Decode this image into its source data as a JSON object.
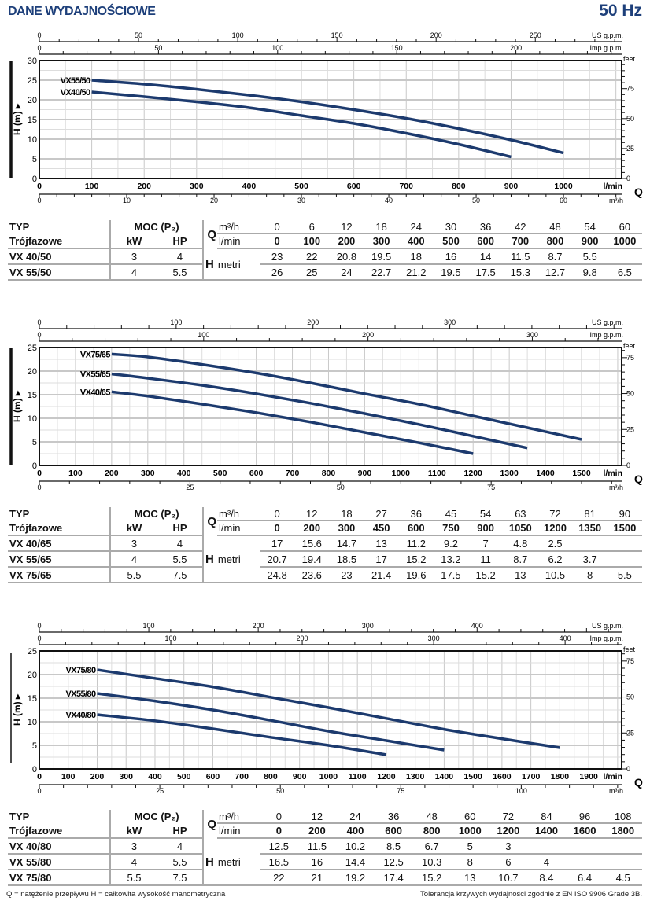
{
  "header": {
    "title": "DANE WYDAJNOŚCIOWE",
    "freq": "50 Hz"
  },
  "colors": {
    "curve": "#1c3a6e",
    "title": "#1d3f7a",
    "grid": "#c8c8c8"
  },
  "chart_data": [
    {
      "type": "line",
      "xlabel": "l/min",
      "ylabel": "H (m)",
      "q_label": "Q",
      "m3h_label": "m³/h",
      "us_label": "US g.p.m.",
      "imp_label": "Imp g.p.m.",
      "feet_label": "feet",
      "xlim": [
        0,
        1111
      ],
      "ylim": [
        0,
        30
      ],
      "x_ticks": [
        0,
        100,
        200,
        300,
        400,
        500,
        600,
        700,
        800,
        900,
        1000
      ],
      "y_ticks": [
        0,
        5,
        10,
        15,
        20,
        25,
        30
      ],
      "us_ticks": [
        0,
        50,
        100,
        150,
        200,
        250
      ],
      "imp_ticks": [
        0,
        50,
        100,
        150,
        200
      ],
      "m3h_ticks": [
        0,
        10,
        20,
        30,
        40,
        50,
        60
      ],
      "feet_ticks": [
        0,
        25,
        50,
        75
      ],
      "series": [
        {
          "name": "VX55/50",
          "x": [
            100,
            200,
            300,
            400,
            500,
            600,
            700,
            800,
            900,
            1000
          ],
          "y": [
            25,
            24,
            22.7,
            21.2,
            19.5,
            17.5,
            15.3,
            12.7,
            9.8,
            6.5
          ]
        },
        {
          "name": "VX40/50",
          "x": [
            100,
            200,
            300,
            400,
            500,
            600,
            700,
            800,
            900
          ],
          "y": [
            22,
            20.8,
            19.5,
            18,
            16,
            14,
            11.5,
            8.7,
            5.5
          ]
        }
      ]
    },
    {
      "type": "line",
      "xlabel": "l/min",
      "ylabel": "H (m)",
      "q_label": "Q",
      "m3h_label": "m³/h",
      "us_label": "US g.p.m.",
      "imp_label": "Imp g.p.m.",
      "feet_label": "feet",
      "xlim": [
        0,
        1611
      ],
      "ylim": [
        0,
        25
      ],
      "x_ticks": [
        0,
        100,
        200,
        300,
        400,
        500,
        600,
        700,
        800,
        900,
        1000,
        1100,
        1200,
        1300,
        1400,
        1500
      ],
      "y_ticks": [
        0,
        5,
        10,
        15,
        20,
        25
      ],
      "us_ticks": [
        0,
        100,
        200,
        300
      ],
      "imp_ticks": [
        0,
        100,
        200,
        300
      ],
      "m3h_ticks": [
        0,
        25,
        50,
        75
      ],
      "feet_ticks": [
        0,
        25,
        50,
        75
      ],
      "series": [
        {
          "name": "VX75/65",
          "x": [
            200,
            300,
            450,
            600,
            750,
            900,
            1050,
            1200,
            1350,
            1500
          ],
          "y": [
            23.6,
            23,
            21.4,
            19.6,
            17.5,
            15.2,
            13,
            10.5,
            8,
            5.5
          ]
        },
        {
          "name": "VX55/65",
          "x": [
            200,
            300,
            450,
            600,
            750,
            900,
            1050,
            1200,
            1350
          ],
          "y": [
            19.4,
            18.5,
            17,
            15.2,
            13.2,
            11,
            8.7,
            6.2,
            3.7
          ]
        },
        {
          "name": "VX40/65",
          "x": [
            200,
            300,
            450,
            600,
            750,
            900,
            1050,
            1200
          ],
          "y": [
            15.6,
            14.7,
            13,
            11.2,
            9.2,
            7,
            4.8,
            2.5
          ]
        }
      ]
    },
    {
      "type": "line",
      "xlabel": "l/min",
      "ylabel": "H (m)",
      "q_label": "Q",
      "m3h_label": "m³/h",
      "us_label": "US g.p.m.",
      "imp_label": "Imp g.p.m.",
      "feet_label": "feet",
      "xlim": [
        0,
        2014
      ],
      "ylim": [
        0,
        25
      ],
      "x_ticks": [
        0,
        100,
        200,
        300,
        400,
        500,
        600,
        700,
        800,
        900,
        1000,
        1100,
        1200,
        1300,
        1400,
        1500,
        1600,
        1700,
        1800,
        1900
      ],
      "y_ticks": [
        0,
        5,
        10,
        15,
        20,
        25
      ],
      "us_ticks": [
        0,
        100,
        200,
        300,
        400
      ],
      "imp_ticks": [
        0,
        100,
        200,
        300,
        400
      ],
      "m3h_ticks": [
        0,
        25,
        50,
        75,
        100
      ],
      "feet_ticks": [
        0,
        25,
        50,
        75
      ],
      "series": [
        {
          "name": "VX75/80",
          "x": [
            200,
            400,
            600,
            800,
            1000,
            1200,
            1400,
            1600,
            1800
          ],
          "y": [
            21,
            19.2,
            17.4,
            15.2,
            13,
            10.7,
            8.4,
            6.4,
            4.5
          ]
        },
        {
          "name": "VX55/80",
          "x": [
            200,
            400,
            600,
            800,
            1000,
            1200,
            1400
          ],
          "y": [
            16,
            14.4,
            12.5,
            10.3,
            8,
            6,
            4
          ]
        },
        {
          "name": "VX40/80",
          "x": [
            200,
            400,
            600,
            800,
            1000,
            1200
          ],
          "y": [
            11.5,
            10.2,
            8.5,
            6.7,
            5,
            3
          ]
        }
      ]
    }
  ],
  "tables": [
    {
      "typ": "TYP",
      "sub": "Trójfazowe",
      "moc": "MOC (P₂)",
      "kw": "kW",
      "hp": "HP",
      "q": "Q",
      "m3h": "m³/h",
      "lmin": "l/min",
      "h": "H",
      "metri": "metri",
      "m3h_values": [
        "0",
        "6",
        "12",
        "18",
        "24",
        "30",
        "36",
        "42",
        "48",
        "54",
        "60"
      ],
      "lmin_values": [
        "0",
        "100",
        "200",
        "300",
        "400",
        "500",
        "600",
        "700",
        "800",
        "900",
        "1000"
      ],
      "rows": [
        {
          "name": "VX 40/50",
          "kw": "3",
          "hp": "4",
          "h": [
            "23",
            "22",
            "20.8",
            "19.5",
            "18",
            "16",
            "14",
            "11.5",
            "8.7",
            "5.5",
            ""
          ]
        },
        {
          "name": "VX 55/50",
          "kw": "4",
          "hp": "5.5",
          "h": [
            "26",
            "25",
            "24",
            "22.7",
            "21.2",
            "19.5",
            "17.5",
            "15.3",
            "12.7",
            "9.8",
            "6.5"
          ]
        }
      ]
    },
    {
      "typ": "TYP",
      "sub": "Trójfazowe",
      "moc": "MOC (P₂)",
      "kw": "kW",
      "hp": "HP",
      "q": "Q",
      "m3h": "m³/h",
      "lmin": "l/min",
      "h": "H",
      "metri": "metri",
      "m3h_values": [
        "0",
        "12",
        "18",
        "27",
        "36",
        "45",
        "54",
        "63",
        "72",
        "81",
        "90"
      ],
      "lmin_values": [
        "0",
        "200",
        "300",
        "450",
        "600",
        "750",
        "900",
        "1050",
        "1200",
        "1350",
        "1500"
      ],
      "rows": [
        {
          "name": "VX 40/65",
          "kw": "3",
          "hp": "4",
          "h": [
            "17",
            "15.6",
            "14.7",
            "13",
            "11.2",
            "9.2",
            "7",
            "4.8",
            "2.5",
            "",
            ""
          ]
        },
        {
          "name": "VX 55/65",
          "kw": "4",
          "hp": "5.5",
          "h": [
            "20.7",
            "19.4",
            "18.5",
            "17",
            "15.2",
            "13.2",
            "11",
            "8.7",
            "6.2",
            "3.7",
            ""
          ]
        },
        {
          "name": "VX 75/65",
          "kw": "5.5",
          "hp": "7.5",
          "h": [
            "24.8",
            "23.6",
            "23",
            "21.4",
            "19.6",
            "17.5",
            "15.2",
            "13",
            "10.5",
            "8",
            "5.5"
          ]
        }
      ]
    },
    {
      "typ": "TYP",
      "sub": "Trójfazowe",
      "moc": "MOC (P₂)",
      "kw": "kW",
      "hp": "HP",
      "q": "Q",
      "m3h": "m³/h",
      "lmin": "l/min",
      "h": "H",
      "metri": "metri",
      "m3h_values": [
        "0",
        "12",
        "24",
        "36",
        "48",
        "60",
        "72",
        "84",
        "96",
        "108"
      ],
      "lmin_values": [
        "0",
        "200",
        "400",
        "600",
        "800",
        "1000",
        "1200",
        "1400",
        "1600",
        "1800"
      ],
      "rows": [
        {
          "name": "VX 40/80",
          "kw": "3",
          "hp": "4",
          "h": [
            "12.5",
            "11.5",
            "10.2",
            "8.5",
            "6.7",
            "5",
            "3",
            "",
            "",
            ""
          ]
        },
        {
          "name": "VX 55/80",
          "kw": "4",
          "hp": "5.5",
          "h": [
            "16.5",
            "16",
            "14.4",
            "12.5",
            "10.3",
            "8",
            "6",
            "4",
            "",
            ""
          ]
        },
        {
          "name": "VX 75/80",
          "kw": "5.5",
          "hp": "7.5",
          "h": [
            "22",
            "21",
            "19.2",
            "17.4",
            "15.2",
            "13",
            "10.7",
            "8.4",
            "6.4",
            "4.5"
          ]
        }
      ]
    }
  ],
  "footer": {
    "left": "Q = natężenie przepływu H = całkowita wysokość manometryczna",
    "right": "Tolerancja krzywych wydajności zgodnie z EN ISO 9906 Grade 3B."
  }
}
